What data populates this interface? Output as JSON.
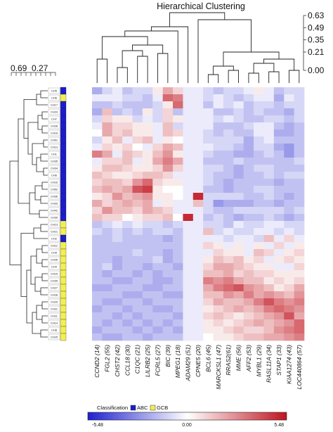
{
  "chart_data": {
    "type": "heatmap",
    "title": "Hierarchical Clustering",
    "column_dendrogram_scale": {
      "ticks": [
        0.63,
        0.49,
        0.35,
        0.21,
        0.0
      ],
      "labels": [
        "0.63",
        "0.49",
        "0.35",
        "0.21",
        "0.00"
      ]
    },
    "row_dendrogram_scale": {
      "ticks": [
        0.69,
        0.27
      ],
      "labels": [
        "0.69",
        "0.27"
      ]
    },
    "columns": [
      "CCND2 (14)",
      "FGL2 (55)",
      "CHST2 (42)",
      "CCL18 (30)",
      "C1QC (21)",
      "LILRB2 (25)",
      "FCRL5 (27)",
      "BIC (39)",
      "MPEG1 (18)",
      "ADAM29 (51)",
      "CPNE5 (20)",
      "BCL6 (45)",
      "MARCKSL1 (47)",
      "RRAS2(61)",
      "MME (56)",
      "AFF2 (53)",
      "MYBL1 (29)",
      "RASL11A (34)",
      "STAP1 (33)",
      "KIAA1274 (43)",
      "LOC440864 (57)"
    ],
    "rows": [
      "CH5",
      "CH6",
      "CH17",
      "CH23",
      "CH7",
      "CH28",
      "CH18",
      "CH51",
      "CH13",
      "CH1",
      "CH35",
      "CH34",
      "CH6",
      "CH16",
      "CH52",
      "CH36",
      "CH33",
      "CH42",
      "CH39",
      "CH13",
      "CH21",
      "CH2",
      "CH12",
      "CH9",
      "CH26",
      "CH4",
      "CH15",
      "CH30",
      "CH27",
      "CH28",
      "CH29",
      "CH31",
      "CH11",
      "CH14",
      "CH8",
      "CH25"
    ],
    "row_classes": [
      "ABC",
      "GCB",
      "ABC",
      "ABC",
      "ABC",
      "ABC",
      "ABC",
      "ABC",
      "ABC",
      "ABC",
      "ABC",
      "ABC",
      "ABC",
      "ABC",
      "ABC",
      "ABC",
      "ABC",
      "ABC",
      "ABC",
      "GCB",
      "GCB",
      "ABC",
      "GCB",
      "GCB",
      "GCB",
      "GCB",
      "GCB",
      "GCB",
      "GCB",
      "GCB",
      "GCB",
      "GCB",
      "GCB",
      "GCB",
      "GCB",
      "GCB"
    ],
    "values": [
      [
        -2.0,
        -1.0,
        -0.5,
        -1.5,
        -1.0,
        -1.0,
        0.5,
        2.0,
        1.0,
        -0.5,
        -0.5,
        -1.0,
        -1.5,
        -1.0,
        -1.0,
        -0.5,
        0.5,
        -0.5,
        -1.5,
        -1.0,
        -1.0
      ],
      [
        -0.5,
        -0.5,
        -0.5,
        -1.0,
        -1.0,
        -1.5,
        -0.5,
        3.5,
        3.0,
        -0.5,
        -0.5,
        -1.0,
        -0.5,
        -1.0,
        -1.5,
        -1.0,
        -0.5,
        -0.5,
        -2.0,
        -0.5,
        -1.0
      ],
      [
        -1.5,
        -1.5,
        -1.0,
        -1.5,
        -1.5,
        -1.5,
        -1.0,
        0.5,
        3.5,
        -0.5,
        -0.5,
        -1.5,
        -0.5,
        -1.0,
        -0.5,
        -1.5,
        -1.0,
        -1.0,
        -1.5,
        -1.0,
        -1.0
      ],
      [
        -2.0,
        1.5,
        -1.5,
        -1.0,
        -1.5,
        0.5,
        -1.0,
        1.0,
        -1.5,
        -0.5,
        -0.5,
        -0.5,
        -1.5,
        -1.5,
        -1.0,
        -1.5,
        -1.0,
        -1.5,
        -1.5,
        -2.0,
        -1.0
      ],
      [
        -1.0,
        1.0,
        0.5,
        0.5,
        -1.0,
        -0.5,
        -1.0,
        1.0,
        0.5,
        -0.5,
        -0.5,
        -0.5,
        -1.0,
        -0.5,
        -1.0,
        -1.5,
        -1.5,
        -1.0,
        -1.0,
        -1.5,
        -1.0
      ],
      [
        -0.5,
        2.0,
        1.0,
        1.0,
        0.5,
        0.5,
        -0.5,
        1.5,
        -1.0,
        -0.5,
        -0.5,
        -0.5,
        -1.5,
        -1.5,
        -1.5,
        -1.0,
        -0.5,
        -0.5,
        -1.5,
        -2.0,
        -1.5
      ],
      [
        0.0,
        2.0,
        1.0,
        1.5,
        0.5,
        0.5,
        -0.5,
        1.5,
        1.0,
        -0.5,
        -0.5,
        -1.0,
        -1.5,
        -1.0,
        -1.5,
        -1.5,
        -0.5,
        -0.5,
        -2.0,
        -2.0,
        -1.5
      ],
      [
        -1.0,
        0.5,
        1.5,
        -0.5,
        1.0,
        1.5,
        -0.5,
        0.5,
        0.0,
        -0.5,
        -0.5,
        -1.0,
        -1.0,
        -1.0,
        -1.0,
        -2.0,
        -1.0,
        -0.5,
        -1.5,
        -1.5,
        -1.5
      ],
      [
        -0.5,
        1.0,
        0.5,
        1.0,
        0.0,
        -0.5,
        1.0,
        2.0,
        1.5,
        -0.5,
        -0.5,
        -0.5,
        -1.0,
        -1.0,
        -1.5,
        -2.0,
        -1.0,
        -1.0,
        -2.0,
        -2.5,
        -1.5
      ],
      [
        3.0,
        2.0,
        -0.5,
        1.5,
        1.0,
        0.5,
        1.5,
        2.5,
        0.5,
        -0.5,
        -0.5,
        -1.0,
        -1.5,
        -1.5,
        -2.0,
        -2.0,
        -1.5,
        -1.0,
        -1.5,
        -2.5,
        -1.5
      ],
      [
        -0.5,
        1.0,
        1.0,
        1.5,
        -0.5,
        0.5,
        2.0,
        3.0,
        2.0,
        -0.5,
        -0.5,
        -1.5,
        -1.5,
        -1.5,
        -1.0,
        -1.5,
        -1.5,
        -1.5,
        -1.5,
        -1.5,
        -1.0
      ],
      [
        0.5,
        1.5,
        1.5,
        1.0,
        0.5,
        0.5,
        1.0,
        2.5,
        1.0,
        -0.5,
        -0.5,
        -1.0,
        -1.0,
        -1.5,
        -2.0,
        -1.5,
        -1.0,
        -1.0,
        -1.5,
        -1.5,
        -1.5
      ],
      [
        1.5,
        1.0,
        0.5,
        0.5,
        1.0,
        1.5,
        1.5,
        1.0,
        -0.5,
        -0.5,
        -0.5,
        -1.0,
        -1.5,
        -1.5,
        -2.0,
        -1.5,
        -1.5,
        -1.0,
        -1.5,
        -1.0,
        -1.0
      ],
      [
        1.0,
        1.5,
        1.5,
        1.0,
        2.5,
        3.5,
        1.0,
        0.5,
        0.5,
        -0.5,
        -0.5,
        -1.0,
        -1.5,
        -2.0,
        -1.5,
        -1.5,
        -1.5,
        -1.5,
        -2.0,
        -1.5,
        -1.5
      ],
      [
        1.5,
        2.0,
        1.5,
        2.0,
        4.0,
        4.5,
        0.5,
        0.0,
        0.0,
        -0.5,
        -0.5,
        -1.5,
        -1.5,
        -2.0,
        -1.5,
        -1.5,
        -1.0,
        -1.0,
        -1.5,
        -1.5,
        -1.5
      ],
      [
        0.5,
        1.0,
        2.5,
        1.5,
        2.0,
        2.5,
        0.5,
        0.5,
        0.0,
        -0.5,
        5.0,
        -1.0,
        -1.0,
        -1.0,
        -1.0,
        -1.5,
        -1.5,
        -1.0,
        -1.5,
        -2.0,
        -1.5
      ],
      [
        2.0,
        1.0,
        1.5,
        2.0,
        1.5,
        2.0,
        -0.5,
        0.5,
        -0.5,
        -0.5,
        1.5,
        -1.0,
        -2.5,
        -2.0,
        -2.0,
        -2.0,
        -1.5,
        -1.5,
        -2.0,
        -1.5,
        -1.5
      ],
      [
        1.0,
        2.5,
        1.5,
        1.5,
        1.0,
        2.0,
        1.5,
        1.0,
        -0.5,
        -0.5,
        -0.5,
        -1.0,
        -1.5,
        -1.5,
        -1.0,
        -1.0,
        -1.0,
        -1.0,
        -1.0,
        -1.5,
        -1.0
      ],
      [
        1.5,
        1.0,
        1.0,
        0.0,
        0.5,
        1.0,
        1.0,
        1.5,
        0.0,
        5.0,
        -0.5,
        -1.5,
        -1.0,
        -1.5,
        -2.0,
        -1.5,
        -1.5,
        -1.0,
        -1.5,
        -2.0,
        -1.5
      ],
      [
        -1.5,
        -1.0,
        -0.5,
        -1.0,
        -0.5,
        -1.0,
        -1.0,
        -1.5,
        -1.0,
        -0.5,
        -0.5,
        -1.0,
        -1.0,
        -1.5,
        -0.5,
        -1.0,
        -1.0,
        -0.5,
        -0.5,
        -1.0,
        -1.0
      ],
      [
        -1.0,
        -1.5,
        -1.0,
        -1.5,
        -1.0,
        -1.5,
        -1.0,
        -1.0,
        -1.5,
        -0.5,
        -0.5,
        1.5,
        -1.0,
        -0.5,
        -1.0,
        -1.0,
        -0.5,
        -0.5,
        -1.0,
        -0.5,
        -1.0
      ],
      [
        -1.5,
        -1.5,
        -1.0,
        -1.5,
        -1.5,
        -1.5,
        -1.5,
        -2.0,
        -1.5,
        -0.5,
        -0.5,
        -0.5,
        -0.5,
        -1.0,
        -0.5,
        -0.5,
        -1.0,
        1.5,
        -0.5,
        1.0,
        -0.5
      ],
      [
        -1.5,
        -1.5,
        -1.5,
        -1.5,
        -1.5,
        -1.5,
        -1.5,
        -1.5,
        -1.5,
        -0.5,
        -0.5,
        1.0,
        0.5,
        -0.5,
        0.5,
        -0.5,
        0.5,
        -0.5,
        1.0,
        -0.5,
        0.5
      ],
      [
        -1.5,
        -1.5,
        -1.5,
        -1.5,
        -1.0,
        -1.5,
        -1.5,
        -2.0,
        -1.5,
        -0.5,
        -0.5,
        -0.5,
        1.0,
        0.5,
        0.5,
        -0.5,
        1.5,
        1.0,
        -0.5,
        0.5,
        1.0
      ],
      [
        -1.5,
        -1.5,
        -2.0,
        -1.5,
        -1.5,
        -1.5,
        -1.0,
        -2.0,
        -1.5,
        -0.5,
        -0.5,
        0.5,
        1.5,
        1.0,
        1.5,
        0.5,
        1.0,
        -0.5,
        0.5,
        1.0,
        0.5
      ],
      [
        -1.5,
        -1.0,
        -2.0,
        -1.5,
        -1.5,
        -2.0,
        -1.5,
        -1.5,
        -2.0,
        -0.5,
        -0.5,
        1.0,
        2.0,
        2.0,
        1.5,
        1.0,
        0.5,
        0.5,
        -0.5,
        -0.5,
        1.0
      ],
      [
        -1.5,
        -2.0,
        -1.5,
        -1.5,
        -2.0,
        -1.5,
        -2.0,
        -1.5,
        -1.5,
        -0.5,
        -0.5,
        1.5,
        1.5,
        2.0,
        1.0,
        1.5,
        1.0,
        1.0,
        0.5,
        0.5,
        0.5
      ],
      [
        -1.5,
        -1.5,
        -2.0,
        -2.0,
        -1.5,
        -1.5,
        -2.0,
        -2.0,
        -1.5,
        -0.5,
        -0.5,
        3.0,
        2.5,
        3.0,
        2.0,
        1.5,
        1.5,
        0.5,
        1.0,
        0.5,
        1.0
      ],
      [
        -2.0,
        -2.0,
        -1.5,
        -1.5,
        -1.5,
        -2.0,
        -2.0,
        -1.5,
        -1.5,
        -0.5,
        -0.5,
        2.0,
        3.0,
        3.5,
        4.0,
        2.5,
        2.0,
        1.5,
        0.5,
        1.0,
        2.0
      ],
      [
        -1.5,
        -1.5,
        -1.5,
        -2.0,
        -2.0,
        -1.5,
        -1.5,
        -2.0,
        -2.0,
        -0.5,
        -0.5,
        1.5,
        1.5,
        2.5,
        2.0,
        3.0,
        2.0,
        2.5,
        2.0,
        1.5,
        2.5
      ],
      [
        -1.5,
        -2.0,
        -2.0,
        -1.5,
        -1.5,
        -2.0,
        -1.5,
        -1.5,
        -1.5,
        -0.5,
        -0.5,
        1.0,
        2.0,
        1.5,
        1.5,
        2.0,
        3.0,
        4.0,
        3.0,
        2.5,
        3.0
      ],
      [
        -2.0,
        -1.5,
        -1.5,
        -2.0,
        -1.5,
        -1.5,
        -2.0,
        -2.0,
        -1.5,
        -0.5,
        -0.5,
        0.5,
        1.0,
        1.5,
        2.0,
        1.5,
        2.0,
        3.0,
        3.5,
        3.0,
        2.5
      ],
      [
        -1.5,
        -1.5,
        -2.0,
        -1.5,
        -2.0,
        -1.5,
        -1.5,
        -1.5,
        -2.0,
        -0.5,
        -0.5,
        1.0,
        1.5,
        1.0,
        0.5,
        1.0,
        1.5,
        2.0,
        2.5,
        4.0,
        2.0
      ],
      [
        -1.5,
        -2.0,
        -1.5,
        -2.0,
        -1.5,
        -2.0,
        -1.5,
        -2.0,
        -1.5,
        -0.5,
        -0.5,
        0.5,
        1.0,
        0.5,
        1.0,
        1.5,
        2.0,
        1.5,
        2.0,
        2.5,
        3.5
      ],
      [
        -2.0,
        -1.5,
        -1.5,
        -1.5,
        -2.0,
        -1.5,
        -2.0,
        -1.5,
        -2.0,
        -0.5,
        -0.5,
        0.5,
        0.5,
        1.0,
        1.5,
        1.0,
        1.0,
        1.5,
        2.5,
        3.0,
        3.5
      ],
      [
        -1.5,
        -2.0,
        -2.0,
        -1.5,
        -1.5,
        -2.0,
        -1.5,
        -1.5,
        -1.5,
        -0.5,
        -0.5,
        0.0,
        0.5,
        0.5,
        1.0,
        1.5,
        1.5,
        2.0,
        2.0,
        2.5,
        3.0
      ]
    ],
    "color_scale": {
      "min": -5.48,
      "mid": 0.0,
      "max": 5.48,
      "min_label": "-5.48",
      "mid_label": "0.00",
      "max_label": "5.48",
      "colors": {
        "low": "#1f1fd0",
        "mid": "#ffffff",
        "high": "#c0141e"
      }
    },
    "legend": {
      "title": "Classification",
      "items": [
        {
          "label": "ABC",
          "color": "#1c1ccc"
        },
        {
          "label": "GCB",
          "color": "#f2ee55"
        }
      ]
    }
  }
}
